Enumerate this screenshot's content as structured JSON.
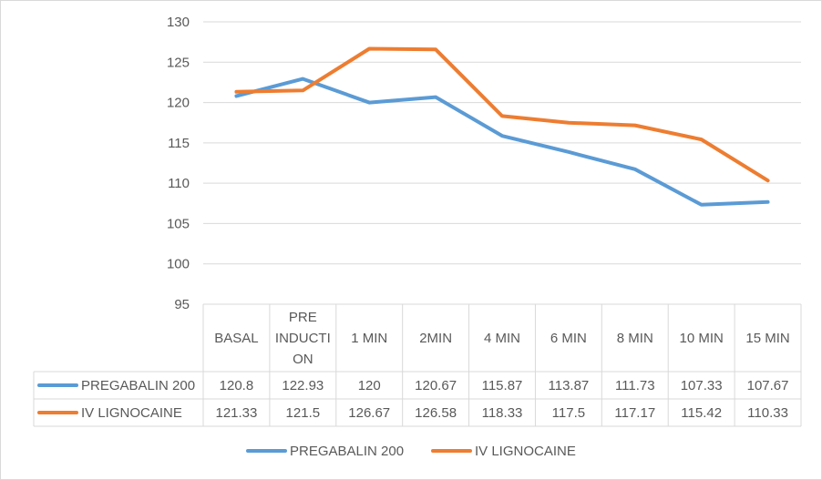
{
  "chart_data": {
    "type": "line",
    "title": "",
    "xlabel": "",
    "ylabel": "",
    "ylim": [
      95,
      130
    ],
    "y_ticks": [
      95,
      100,
      105,
      110,
      115,
      120,
      125,
      130
    ],
    "grid": true,
    "legend_position": "bottom",
    "data_table": true,
    "categories": [
      "BASAL",
      "PRE INDUCTION",
      "1 MIN",
      "2MIN",
      "4 MIN",
      "6 MIN",
      "8 MIN",
      "10 MIN",
      "15 MIN"
    ],
    "category_display": [
      [
        "BASAL"
      ],
      [
        "PRE",
        "INDUCTI",
        "ON"
      ],
      [
        "1 MIN"
      ],
      [
        "2MIN"
      ],
      [
        "4 MIN"
      ],
      [
        "6 MIN"
      ],
      [
        "8 MIN"
      ],
      [
        "10 MIN"
      ],
      [
        "15 MIN"
      ]
    ],
    "series": [
      {
        "name": "PREGABALIN 200",
        "color": "#5b9bd5",
        "values": [
          120.8,
          122.93,
          120,
          120.67,
          115.87,
          113.87,
          111.73,
          107.33,
          107.67
        ],
        "value_labels": [
          "120.8",
          "122.93",
          "120",
          "120.67",
          "115.87",
          "113.87",
          "111.73",
          "107.33",
          "107.67"
        ]
      },
      {
        "name": "IV LIGNOCAINE",
        "color": "#ed7d31",
        "values": [
          121.33,
          121.5,
          126.67,
          126.58,
          118.33,
          117.5,
          117.17,
          115.42,
          110.33
        ],
        "value_labels": [
          "121.33",
          "121.5",
          "126.67",
          "126.58",
          "118.33",
          "117.5",
          "117.17",
          "115.42",
          "110.33"
        ]
      }
    ]
  }
}
